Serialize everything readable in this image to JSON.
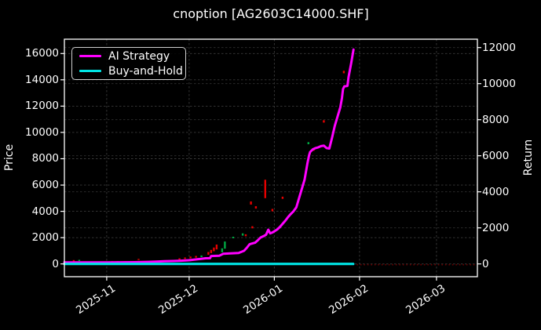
{
  "title": "cnoption [AG2603C14000.SHF]",
  "chart_data": {
    "type": "line",
    "title": "cnoption [AG2603C14000.SHF]",
    "grid": "both-dashed",
    "background": "#000000",
    "x_axis": {
      "unit": "days since 2025-11-01",
      "range": [
        -15.4,
        134.9
      ],
      "ticks": [
        {
          "day": 0,
          "label": "2025-11"
        },
        {
          "day": 30,
          "label": "2025-12"
        },
        {
          "day": 61,
          "label": "2026-01"
        },
        {
          "day": 92,
          "label": "2026-02"
        },
        {
          "day": 120,
          "label": "2026-03"
        }
      ]
    },
    "price_axis": {
      "label": "Price",
      "range": [
        -971,
        17090
      ],
      "ticks": [
        0,
        2000,
        4000,
        6000,
        8000,
        10000,
        12000,
        14000,
        16000
      ]
    },
    "return_axis": {
      "label": "Return",
      "range": [
        -710,
        12465
      ],
      "ticks": [
        0,
        2000,
        4000,
        6000,
        8000,
        10000,
        12000
      ]
    },
    "legend_position": "upper-left",
    "series": [
      {
        "name": "AI Strategy",
        "color": "#ff00ff",
        "width": 3,
        "axis": "return",
        "points": [
          [
            -15.4,
            80
          ],
          [
            0,
            85
          ],
          [
            10,
            95
          ],
          [
            15,
            110
          ],
          [
            18,
            125
          ],
          [
            21,
            148
          ],
          [
            24,
            160
          ],
          [
            27,
            175
          ],
          [
            30,
            205
          ],
          [
            33,
            255
          ],
          [
            36,
            310
          ],
          [
            37.6,
            315
          ],
          [
            38,
            440
          ],
          [
            41,
            455
          ],
          [
            42.4,
            560
          ],
          [
            45,
            585
          ],
          [
            48,
            605
          ],
          [
            50,
            730
          ],
          [
            51,
            900
          ],
          [
            52,
            1090
          ],
          [
            54,
            1175
          ],
          [
            55,
            1310
          ],
          [
            56,
            1465
          ],
          [
            57,
            1535
          ],
          [
            58,
            1620
          ],
          [
            58.8,
            1900
          ],
          [
            59.5,
            1695
          ],
          [
            60.5,
            1760
          ],
          [
            62,
            1905
          ],
          [
            63,
            2045
          ],
          [
            65,
            2400
          ],
          [
            66,
            2600
          ],
          [
            67,
            2775
          ],
          [
            68,
            2925
          ],
          [
            69,
            3140
          ],
          [
            70,
            3650
          ],
          [
            71,
            4165
          ],
          [
            72,
            4675
          ],
          [
            73,
            5545
          ],
          [
            73.6,
            6000
          ],
          [
            74,
            6205
          ],
          [
            75,
            6355
          ],
          [
            76,
            6425
          ],
          [
            77,
            6470
          ],
          [
            78,
            6535
          ],
          [
            79,
            6560
          ],
          [
            80,
            6425
          ],
          [
            81,
            6400
          ],
          [
            82,
            7005
          ],
          [
            83,
            7665
          ],
          [
            84,
            8175
          ],
          [
            85,
            8685
          ],
          [
            85.6,
            9200
          ],
          [
            86,
            9705
          ],
          [
            86.5,
            9850
          ],
          [
            87.6,
            9875
          ],
          [
            88,
            10365
          ],
          [
            89,
            11165
          ],
          [
            89.8,
            11890
          ]
        ]
      },
      {
        "name": "Buy-and-Hold",
        "color": "#00e5e5",
        "width": 3.2,
        "axis": "return",
        "points": [
          [
            -15.4,
            0
          ],
          [
            89.7,
            0
          ]
        ]
      }
    ],
    "candles": {
      "axis": "price",
      "up_color": "#00a843",
      "down_color": "#e60000",
      "items": [
        [
          -12,
          200,
          290,
          "d"
        ],
        [
          -10,
          220,
          310,
          "u"
        ],
        [
          2,
          140,
          210,
          "d"
        ],
        [
          4,
          150,
          215,
          "d"
        ],
        [
          6.5,
          140,
          195,
          "u"
        ],
        [
          11.6,
          300,
          385,
          "d"
        ],
        [
          20,
          150,
          225,
          "d"
        ],
        [
          26.5,
          330,
          430,
          "d"
        ],
        [
          28.5,
          380,
          490,
          "d"
        ],
        [
          30.5,
          430,
          560,
          "d"
        ],
        [
          32.5,
          480,
          610,
          "d"
        ],
        [
          34.5,
          520,
          645,
          "u"
        ],
        [
          37,
          700,
          905,
          "d"
        ],
        [
          38,
          825,
          1065,
          "d"
        ],
        [
          39,
          965,
          1245,
          "d"
        ],
        [
          40,
          1105,
          1475,
          "d"
        ],
        [
          42,
          885,
          1185,
          "u"
        ],
        [
          43,
          1155,
          1705,
          "u"
        ],
        [
          46,
          1950,
          2070,
          "u"
        ],
        [
          49.5,
          2155,
          2325,
          "u"
        ],
        [
          50.6,
          2105,
          2255,
          "d"
        ],
        [
          52.5,
          4510,
          4750,
          "d"
        ],
        [
          53,
          2705,
          2865,
          "d"
        ],
        [
          54.3,
          4210,
          4390,
          "d"
        ],
        [
          57.7,
          5000,
          6400,
          "d"
        ],
        [
          60.3,
          4000,
          4185,
          "d"
        ],
        [
          64,
          4950,
          5115,
          "d"
        ],
        [
          73.4,
          9100,
          9265,
          "u"
        ],
        [
          75.3,
          8600,
          8770,
          "d"
        ],
        [
          79,
          10750,
          10925,
          "d"
        ],
        [
          86.3,
          14500,
          14685,
          "d"
        ]
      ]
    },
    "baseline_dots": {
      "axis": "price",
      "price": -60,
      "from_day": 91,
      "to_day": 134.5,
      "color": "#6e0000"
    }
  }
}
